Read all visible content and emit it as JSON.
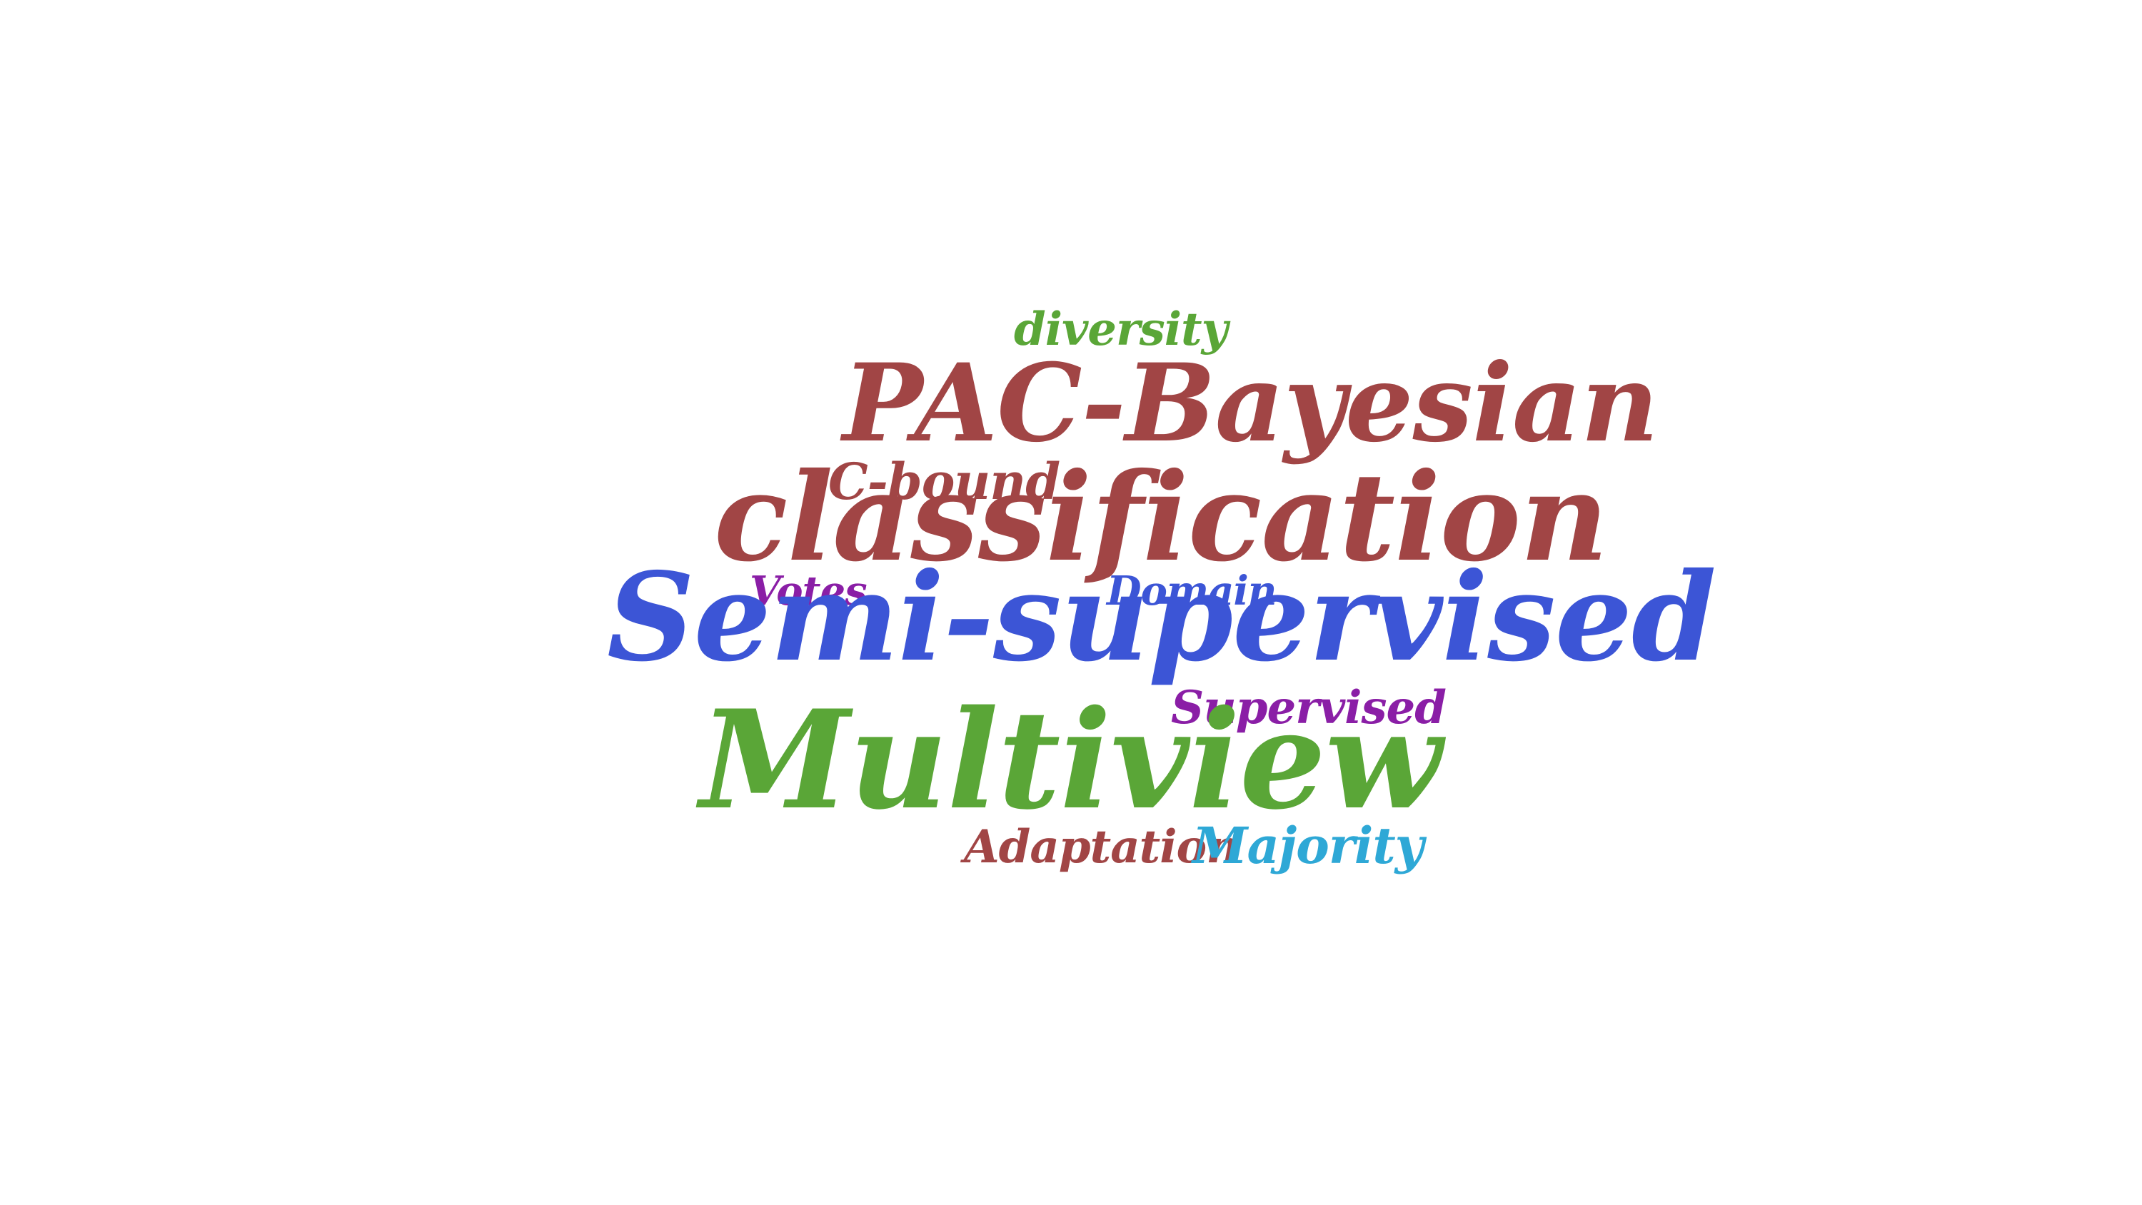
{
  "word_cloud": {
    "words": [
      {
        "text": "diversity",
        "color": "#5aa637"
      },
      {
        "text": "PAC-Bayesian",
        "color": "#a14545"
      },
      {
        "text": "C-bound",
        "color": "#a14545"
      },
      {
        "text": "classification",
        "color": "#a14545"
      },
      {
        "text": "Votes",
        "color": "#8a1ea6"
      },
      {
        "text": "Domain",
        "color": "#3c55d6"
      },
      {
        "text": "Semi-supervised",
        "color": "#3c55d6"
      },
      {
        "text": "Supervised",
        "color": "#8a1ea6"
      },
      {
        "text": "Multiview",
        "color": "#5aa637"
      },
      {
        "text": "Adaptation",
        "color": "#a14545"
      },
      {
        "text": "Majority",
        "color": "#2ea8d6"
      }
    ]
  }
}
